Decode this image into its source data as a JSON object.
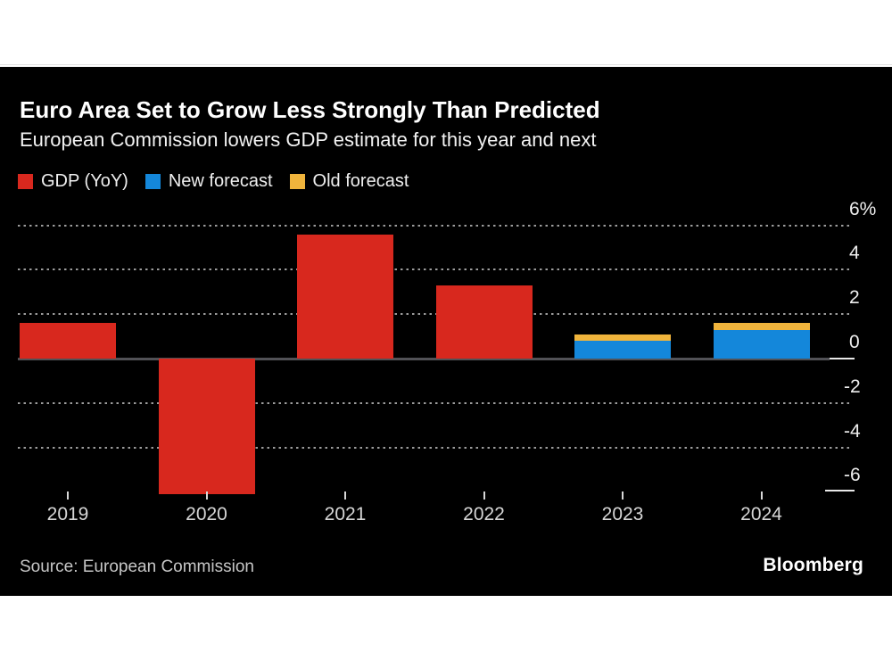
{
  "header": {
    "title": "Euro Area Set to Grow Less Strongly Than Predicted",
    "subtitle": "European Commission lowers GDP estimate for this year and next"
  },
  "legend": [
    {
      "label": "GDP (YoY)",
      "color": "#d8281e"
    },
    {
      "label": "New forecast",
      "color": "#1487da"
    },
    {
      "label": "Old forecast",
      "color": "#f0b43c"
    }
  ],
  "chart_data": {
    "type": "bar",
    "title": "Euro Area Set to Grow Less Strongly Than Predicted",
    "subtitle": "European Commission lowers GDP estimate for this year and next",
    "categories": [
      "2019",
      "2020",
      "2021",
      "2022",
      "2023",
      "2024"
    ],
    "series": [
      {
        "name": "GDP (YoY)",
        "color": "#d8281e",
        "values": [
          1.6,
          -6.1,
          5.6,
          3.3,
          null,
          null
        ]
      },
      {
        "name": "Old forecast",
        "color": "#f0b43c",
        "values": [
          null,
          null,
          null,
          null,
          1.1,
          1.6
        ]
      },
      {
        "name": "New forecast",
        "color": "#1487da",
        "values": [
          null,
          null,
          null,
          null,
          0.8,
          1.3
        ]
      }
    ],
    "xlabel": "",
    "ylabel": "",
    "y_axis": {
      "ticks": [
        6,
        4,
        2,
        0,
        -2,
        -4,
        -6
      ],
      "tick_labels": [
        "6%",
        "4",
        "2",
        "0",
        "-2",
        "-4",
        "-6"
      ],
      "min": -6.5,
      "max": 6
    },
    "grid": "horizontal-dotted",
    "zero_line": true,
    "legend_position": "top-left"
  },
  "footer": {
    "source": "Source: European Commission",
    "brand": "Bloomberg"
  },
  "colors": {
    "panel_background": "#000000",
    "page_background": "#ffffff",
    "zero_line": "#515156",
    "gridline": "#9c9c9c",
    "axis_text": "#eeeeee",
    "category_text": "#d6d6d6",
    "title_text": "#ffffff",
    "source_text": "#c6c6c6"
  }
}
